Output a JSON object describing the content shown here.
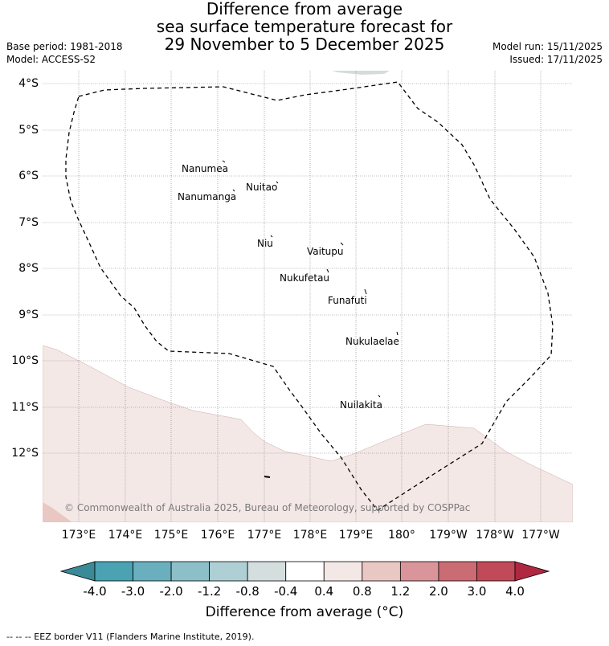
{
  "title": {
    "line1": "Difference from average",
    "line2": "sea surface temperature forecast for",
    "line3": "29 November to 5 December 2025"
  },
  "meta": {
    "base_period": "Base period: 1981-2018",
    "model": "Model: ACCESS-S2",
    "model_run": "Model run: 15/11/2025",
    "issued": "Issued: 17/11/2025"
  },
  "map": {
    "lat_labels": [
      "4°S",
      "5°S",
      "6°S",
      "7°S",
      "8°S",
      "9°S",
      "10°S",
      "11°S",
      "12°S"
    ],
    "lon_labels": [
      "173°E",
      "174°E",
      "175°E",
      "176°E",
      "177°E",
      "178°E",
      "179°E",
      "180°",
      "179°W",
      "178°W",
      "177°W"
    ],
    "islands": [
      "Nanumea",
      "Nuitao",
      "Nanumanga",
      "Niu",
      "Vaitupu",
      "Nukufetau",
      "Funafuti",
      "Nukulaelae",
      "Nuilakita"
    ],
    "copyright": "© Commonwealth of Australia 2025, Bureau of Meteorology, supported by COSPPac",
    "anomaly_fill_color": "#f4e8e6"
  },
  "colorbar": {
    "labels": [
      "-4.0",
      "-3.0",
      "-2.0",
      "-1.2",
      "-0.8",
      "-0.4",
      "0.4",
      "0.8",
      "1.2",
      "2.0",
      "3.0",
      "4.0"
    ],
    "colors": [
      "#3b8a98",
      "#4aa2b3",
      "#6aafbd",
      "#8cbfc8",
      "#aecfd3",
      "#d5dedf",
      "#ffffff",
      "#f4e8e6",
      "#e9c8c4",
      "#d9959a",
      "#cb6b73",
      "#c14a58",
      "#b02742"
    ],
    "title": "Difference from average (°C)"
  },
  "footer": "--  --  -- EEZ border V11 (Flanders Marine Institute, 2019)."
}
